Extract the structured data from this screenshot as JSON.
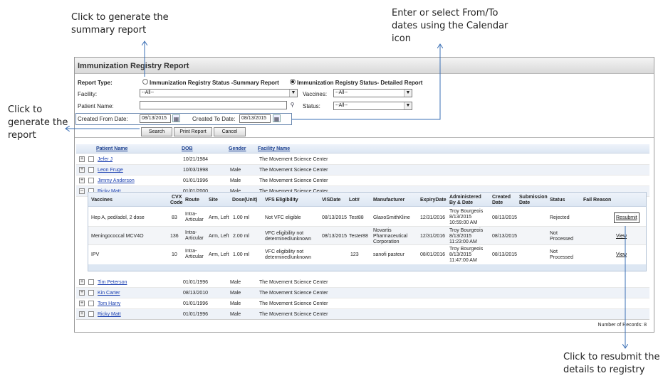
{
  "callouts": {
    "summary": "Click to generate the summary report",
    "summary_l1": "Click to generate the",
    "summary_l2": "summary report",
    "dates_l1": "Enter or select From/To",
    "dates_l2": "dates using the Calendar",
    "dates_l3": "icon",
    "gen_l1": "Click to",
    "gen_l2": "generate the",
    "gen_l3": "report",
    "resub_l1": "Click to resubmit the",
    "resub_l2": "details to registry"
  },
  "window": {
    "title": "Immunization Registry Report"
  },
  "form": {
    "report_type_label": "Report Type:",
    "opt_summary": "Immunization Registry Status -Summary Report",
    "opt_detailed": "Immunization Registry Status- Detailed Report",
    "facility_label": "Facility:",
    "facility_value": "--All--",
    "vaccines_label": "Vaccines:",
    "vaccines_value": "--All--",
    "patient_label": "Patient Name:",
    "patient_value": "",
    "status_label": "Status:",
    "status_value": "--All--",
    "from_label": "Created From Date:",
    "from_value": "08/13/2015",
    "to_label": "Created To Date:",
    "to_value": "08/13/2015",
    "search": "Search",
    "print": "Print Report",
    "cancel": "Cancel"
  },
  "grid": {
    "headers": {
      "patient": "Patient Name",
      "dob": "DOB",
      "gender": "Gender",
      "facility": "Facility Name"
    },
    "rows_top": [
      {
        "name": "Jefer J",
        "dob": "10/21/1984",
        "gender": "",
        "facility": "The Movement Science Center"
      },
      {
        "name": "Leon Fruge",
        "dob": "10/03/1998",
        "gender": "Male",
        "facility": "The Movement Science Center"
      },
      {
        "name": "Jimmy Anderson",
        "dob": "01/01/1996",
        "gender": "Male",
        "facility": "The Movement Science Center"
      },
      {
        "name": "Ricky Matt",
        "dob": "01/01/2000",
        "gender": "Male",
        "facility": "The Movement Science Center"
      }
    ],
    "rows_bottom": [
      {
        "name": "Tim Peterson",
        "dob": "01/01/1996",
        "gender": "Male",
        "facility": "The Movement Science Center"
      },
      {
        "name": "Kin Carter",
        "dob": "08/13/2010",
        "gender": "Male",
        "facility": "The Movement Science Center"
      },
      {
        "name": "Tom Harry",
        "dob": "01/01/1996",
        "gender": "Male",
        "facility": "The Movement Science Center"
      },
      {
        "name": "Ricky Matt",
        "dob": "01/01/1996",
        "gender": "Male",
        "facility": "The Movement Science Center"
      }
    ],
    "footer": "Number of Records: 8"
  },
  "sub": {
    "headers": {
      "vaccines": "Vaccines",
      "cvx1": "CVX",
      "cvx2": "Code",
      "route": "Route",
      "site": "Site",
      "dose": "Dose(Unit)",
      "vfs": "VFS Eligibility",
      "visdate": "VISDate",
      "lot": "Lot#",
      "manufacturer": "Manufacturer",
      "expiry": "ExpiryDate",
      "adm1": "Administered",
      "adm2": "By & Date",
      "created1": "Created",
      "created2": "Date",
      "subm1": "Submission",
      "subm2": "Date",
      "status": "Status",
      "fail": "Fail Reason"
    },
    "rows": [
      {
        "vaccine": "Hep A, ped/adol, 2 dose",
        "cvx": "83",
        "route1": "Intra-",
        "route2": "Articular",
        "site": "Arm, Left",
        "dose": "1.00 ml",
        "vfs1": "Not VFC eligible",
        "vfs2": "",
        "visdate": "08/13/2015",
        "lot": "Test88",
        "man1": "GlaxoSmithKline",
        "man2": "",
        "man3": "",
        "expiry": "12/31/2016",
        "adm1": "Troy Bourgeois",
        "adm2": "8/13/2015",
        "adm3": "10:59:00 AM",
        "created": "08/13/2015",
        "status1": "Rejected",
        "status2": "",
        "action": "Resubmit"
      },
      {
        "vaccine": "Meningococcal MCV4O",
        "cvx": "136",
        "route1": "Intra-",
        "route2": "Articular",
        "site": "Arm, Left",
        "dose": "2.00 ml",
        "vfs1": "VFC eligibility not",
        "vfs2": "determined/unknown",
        "visdate": "08/13/2015",
        "lot": "Tester88",
        "man1": "Novartis",
        "man2": "Pharmaceutical",
        "man3": "Corporation",
        "expiry": "12/31/2016",
        "adm1": "Troy Bourgeois",
        "adm2": "8/13/2015",
        "adm3": "11:23:00 AM",
        "created": "08/13/2015",
        "status1": "Not",
        "status2": "Processed",
        "action": "View"
      },
      {
        "vaccine": "IPV",
        "cvx": "10",
        "route1": "Intra-",
        "route2": "Articular",
        "site": "Arm, Left",
        "dose": "1.00 ml",
        "vfs1": "VFC eligibility not",
        "vfs2": "determined/unknown",
        "visdate": "",
        "lot": "123",
        "man1": "sanofi pasteur",
        "man2": "",
        "man3": "",
        "expiry": "08/01/2016",
        "adm1": "Troy Bourgeois",
        "adm2": "8/13/2015",
        "adm3": "11:47:00 AM",
        "created": "08/13/2015",
        "status1": "Not",
        "status2": "Processed",
        "action": "View"
      }
    ]
  },
  "icons": {
    "calendar": "calendar-icon",
    "search": "magnifier-icon",
    "expand": "plus-icon",
    "collapse": "minus-icon"
  },
  "colors": {
    "link": "#1a3fb0",
    "header_bg": "#dde7f3",
    "arrow": "#3a6fb5"
  }
}
